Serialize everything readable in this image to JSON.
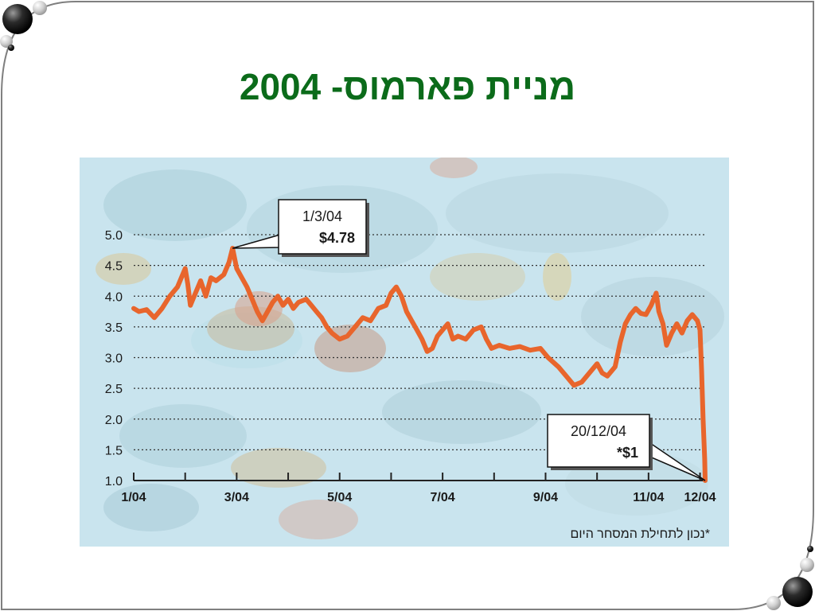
{
  "slide": {
    "title": "מניית פארמוס- 2004"
  },
  "colors": {
    "title": "#0b6b1a",
    "line": "#e8652c",
    "background": "#c9e4ee"
  },
  "chart_data": {
    "type": "line",
    "title": "",
    "xlabel": "",
    "ylabel": "",
    "ylim": [
      1.0,
      5.0
    ],
    "y_ticks": [
      "1.0",
      "1.5",
      "2.0",
      "2.5",
      "3.0",
      "3.5",
      "4.0",
      "4.5",
      "5.0"
    ],
    "x_ticks": [
      {
        "label": "1/04",
        "month": 1
      },
      {
        "label": "3/04",
        "month": 3
      },
      {
        "label": "5/04",
        "month": 5
      },
      {
        "label": "7/04",
        "month": 7
      },
      {
        "label": "9/04",
        "month": 9
      },
      {
        "label": "11/04",
        "month": 11
      },
      {
        "label": "12/04",
        "month": 12
      }
    ],
    "grid": true,
    "series": [
      {
        "points": [
          [
            1.0,
            3.8
          ],
          [
            1.1,
            3.75
          ],
          [
            1.25,
            3.78
          ],
          [
            1.4,
            3.65
          ],
          [
            1.55,
            3.8
          ],
          [
            1.7,
            4.0
          ],
          [
            1.85,
            4.15
          ],
          [
            2.0,
            4.45
          ],
          [
            2.05,
            4.2
          ],
          [
            2.1,
            3.85
          ],
          [
            2.2,
            4.05
          ],
          [
            2.3,
            4.25
          ],
          [
            2.4,
            4.0
          ],
          [
            2.5,
            4.3
          ],
          [
            2.6,
            4.25
          ],
          [
            2.75,
            4.35
          ],
          [
            2.85,
            4.55
          ],
          [
            2.92,
            4.78
          ],
          [
            3.0,
            4.45
          ],
          [
            3.1,
            4.3
          ],
          [
            3.2,
            4.15
          ],
          [
            3.3,
            3.95
          ],
          [
            3.4,
            3.75
          ],
          [
            3.5,
            3.6
          ],
          [
            3.6,
            3.75
          ],
          [
            3.7,
            3.9
          ],
          [
            3.8,
            4.0
          ],
          [
            3.9,
            3.85
          ],
          [
            4.0,
            3.95
          ],
          [
            4.1,
            3.8
          ],
          [
            4.2,
            3.9
          ],
          [
            4.35,
            3.95
          ],
          [
            4.45,
            3.85
          ],
          [
            4.55,
            3.75
          ],
          [
            4.65,
            3.65
          ],
          [
            4.75,
            3.5
          ],
          [
            4.85,
            3.4
          ],
          [
            5.0,
            3.3
          ],
          [
            5.15,
            3.35
          ],
          [
            5.3,
            3.5
          ],
          [
            5.45,
            3.65
          ],
          [
            5.6,
            3.6
          ],
          [
            5.75,
            3.8
          ],
          [
            5.9,
            3.85
          ],
          [
            6.0,
            4.05
          ],
          [
            6.1,
            4.15
          ],
          [
            6.2,
            4.0
          ],
          [
            6.3,
            3.75
          ],
          [
            6.4,
            3.6
          ],
          [
            6.5,
            3.45
          ],
          [
            6.6,
            3.3
          ],
          [
            6.7,
            3.1
          ],
          [
            6.8,
            3.15
          ],
          [
            6.9,
            3.35
          ],
          [
            7.0,
            3.45
          ],
          [
            7.1,
            3.55
          ],
          [
            7.2,
            3.3
          ],
          [
            7.3,
            3.35
          ],
          [
            7.45,
            3.3
          ],
          [
            7.6,
            3.45
          ],
          [
            7.75,
            3.5
          ],
          [
            7.85,
            3.3
          ],
          [
            7.95,
            3.15
          ],
          [
            8.1,
            3.2
          ],
          [
            8.3,
            3.15
          ],
          [
            8.5,
            3.18
          ],
          [
            8.7,
            3.12
          ],
          [
            8.9,
            3.15
          ],
          [
            9.05,
            3.0
          ],
          [
            9.25,
            2.85
          ],
          [
            9.4,
            2.7
          ],
          [
            9.55,
            2.55
          ],
          [
            9.7,
            2.6
          ],
          [
            9.85,
            2.75
          ],
          [
            10.0,
            2.9
          ],
          [
            10.1,
            2.75
          ],
          [
            10.2,
            2.7
          ],
          [
            10.35,
            2.85
          ],
          [
            10.45,
            3.25
          ],
          [
            10.55,
            3.55
          ],
          [
            10.65,
            3.7
          ],
          [
            10.75,
            3.8
          ],
          [
            10.85,
            3.72
          ],
          [
            10.95,
            3.7
          ],
          [
            11.05,
            3.85
          ],
          [
            11.15,
            4.05
          ],
          [
            11.2,
            3.75
          ],
          [
            11.28,
            3.55
          ],
          [
            11.35,
            3.2
          ],
          [
            11.45,
            3.4
          ],
          [
            11.55,
            3.55
          ],
          [
            11.65,
            3.4
          ],
          [
            11.75,
            3.6
          ],
          [
            11.85,
            3.7
          ],
          [
            11.95,
            3.6
          ],
          [
            12.0,
            3.45
          ],
          [
            12.03,
            2.8
          ],
          [
            12.06,
            2.0
          ],
          [
            12.09,
            1.35
          ],
          [
            12.1,
            1.0
          ]
        ]
      }
    ],
    "annotations": [
      {
        "date": "1/3/04",
        "value_label": "$4.78",
        "x": 2.92,
        "y": 4.78
      },
      {
        "date": "20/12/04",
        "value_label": "*$1",
        "x": 12.1,
        "y": 1.0
      }
    ],
    "footnote": "*נכון לתחילת המסחר היום"
  }
}
